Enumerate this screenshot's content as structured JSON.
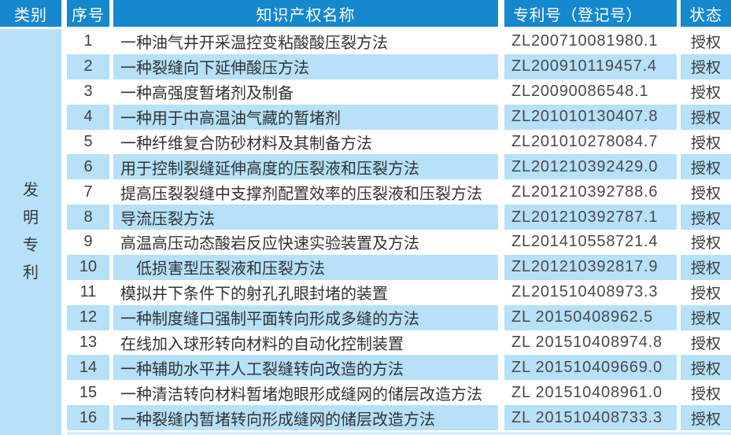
{
  "table": {
    "headers": {
      "category": "类别",
      "index": "序号",
      "name": "知识产权名称",
      "patent_no": "专利号（登记号）",
      "status": "状态"
    },
    "category_label": "发明专利",
    "category_chars": {
      "c0": "发",
      "c1": "明",
      "c2": "专",
      "c3": "利"
    },
    "rows": [
      {
        "no": "1",
        "name": "一种油气井开采温控变粘酸酸压裂方法",
        "patent_no": "ZL200710081980.1",
        "status": "授权"
      },
      {
        "no": "2",
        "name": "一种裂缝向下延伸酸压方法",
        "patent_no": "ZL200910119457.4",
        "status": "授权"
      },
      {
        "no": "3",
        "name": "一种高强度暂堵剂及制备",
        "patent_no": "ZL20090086548.1",
        "status": "授权"
      },
      {
        "no": "4",
        "name": "一种用于中高温油气藏的暂堵剂",
        "patent_no": "ZL201010130407.8",
        "status": "授权"
      },
      {
        "no": "5",
        "name": "一种纤维复合防砂材料及其制备方法",
        "patent_no": "ZL201010278084.7",
        "status": "授权"
      },
      {
        "no": "6",
        "name": "用于控制裂缝延伸高度的压裂液和压裂方法",
        "patent_no": "ZL201210392429.0",
        "status": "授权"
      },
      {
        "no": "7",
        "name": "提高压裂裂缝中支撑剂配置效率的压裂液和压裂方法",
        "patent_no": "ZL201210392788.6",
        "status": "授权"
      },
      {
        "no": "8",
        "name": "导流压裂方法",
        "patent_no": "ZL201210392787.1",
        "status": "授权"
      },
      {
        "no": "9",
        "name": "高温高压动态酸岩反应快速实验装置及方法",
        "patent_no": "ZL201410558721.4",
        "status": "授权"
      },
      {
        "no": "10",
        "name": "　低损害型压裂液和压裂方法",
        "patent_no": "ZL201210392817.9",
        "status": "授权"
      },
      {
        "no": "11",
        "name": "模拟井下条件下的射孔孔眼封堵的装置",
        "patent_no": "ZL201510408973.3",
        "status": "授权"
      },
      {
        "no": "12",
        "name": "一种制度缝口强制平面转向形成多缝的方法",
        "patent_no": "ZL 20150408962.5",
        "status": "授权"
      },
      {
        "no": "13",
        "name": "在线加入球形转向材料的自动化控制装置",
        "patent_no": "ZL 201510408974.8",
        "status": "授权"
      },
      {
        "no": "14",
        "name": "一种辅助水平井人工裂缝转向改造的方法",
        "patent_no": "ZL 201510409669.0",
        "status": "授权"
      },
      {
        "no": "15",
        "name": "一种清洁转向材料暂堵炮眼形成缝网的储层改造方法",
        "patent_no": "ZL 201510408961.0",
        "status": "授权"
      },
      {
        "no": "16",
        "name": "一种裂缝内暂堵转向形成缝网的储层改造方法",
        "patent_no": "ZL 201510408733.3",
        "status": "授权"
      }
    ]
  },
  "colors": {
    "header_bg": "#1688cd",
    "stripe_bg": "#b6e1f8",
    "border": "#ffffff",
    "header_text": "#ffffff",
    "body_text": "#383838"
  }
}
